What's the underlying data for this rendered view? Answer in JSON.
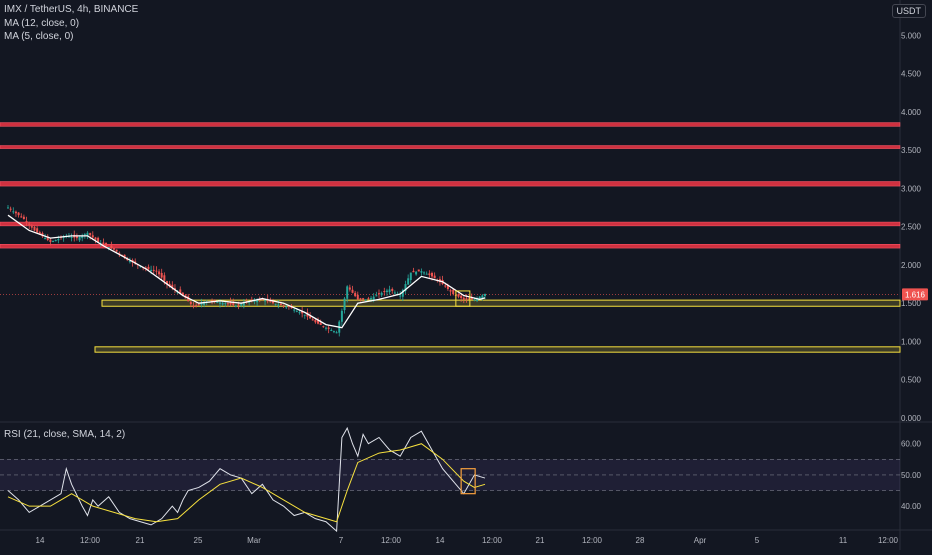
{
  "header": {
    "symbol_line": "IMX / TetherUS, 4h, BINANCE",
    "ma12_label": "MA (12, close, 0)",
    "ma5_label": "MA (5, close, 0)",
    "currency": "USDT"
  },
  "price_axis": {
    "ticks": [
      "5.000",
      "4.500",
      "4.000",
      "3.500",
      "3.000",
      "2.500",
      "2.000",
      "1.500",
      "1.000",
      "0.500",
      "0.000"
    ],
    "last_price": "1.616"
  },
  "rsi": {
    "label": "RSI (21, close, SMA, 14, 2)",
    "ticks": [
      "60.00",
      "50.00",
      "40.00"
    ]
  },
  "time_axis": {
    "ticks": [
      "14",
      "12:00",
      "21",
      "25",
      "Mar",
      "7",
      "12:00",
      "14",
      "12:00",
      "21",
      "12:00",
      "28",
      "Apr",
      "5",
      "11",
      "12:00"
    ]
  },
  "colors": {
    "background": "#131722",
    "resistance_zone": "#f23645",
    "support_zone": "#f7e13e",
    "up_candle": "#26a69a",
    "down_candle": "#ef5350",
    "ma12": "#ffffff",
    "rsi_line": "#e0e3eb",
    "rsi_ma": "#f7e13e",
    "rsi_band": "#7e57c2",
    "price_badge": "#ef5350"
  },
  "chart_data": {
    "type": "candlestick",
    "interval": "4h",
    "ylim": [
      0,
      5.2
    ],
    "resistance_zones": [
      [
        3.81,
        3.86
      ],
      [
        3.52,
        3.56
      ],
      [
        3.03,
        3.09
      ],
      [
        2.51,
        2.56
      ],
      [
        2.22,
        2.27
      ]
    ],
    "support_zones": [
      [
        1.46,
        1.54
      ],
      [
        0.86,
        0.93
      ]
    ],
    "price_path": [
      [
        0,
        2.75
      ],
      [
        3,
        2.6
      ],
      [
        5,
        2.45
      ],
      [
        8,
        2.3
      ],
      [
        11,
        2.38
      ],
      [
        13,
        2.35
      ],
      [
        15,
        2.42
      ],
      [
        17,
        2.3
      ],
      [
        20,
        2.2
      ],
      [
        23,
        2.05
      ],
      [
        26,
        1.95
      ],
      [
        28,
        1.92
      ],
      [
        30,
        1.75
      ],
      [
        33,
        1.6
      ],
      [
        35,
        1.45
      ],
      [
        37,
        1.52
      ],
      [
        39,
        1.52
      ],
      [
        41,
        1.5
      ],
      [
        43,
        1.47
      ],
      [
        46,
        1.53
      ],
      [
        48,
        1.55
      ],
      [
        50,
        1.5
      ],
      [
        53,
        1.45
      ],
      [
        56,
        1.35
      ],
      [
        58,
        1.25
      ],
      [
        60,
        1.18
      ],
      [
        62,
        1.12
      ],
      [
        63,
        1.4
      ],
      [
        64,
        1.72
      ],
      [
        66,
        1.55
      ],
      [
        68,
        1.55
      ],
      [
        70,
        1.62
      ],
      [
        72,
        1.68
      ],
      [
        74,
        1.6
      ],
      [
        76,
        1.9
      ],
      [
        78,
        1.92
      ],
      [
        80,
        1.85
      ],
      [
        82,
        1.75
      ],
      [
        84,
        1.62
      ],
      [
        86,
        1.55
      ],
      [
        88,
        1.55
      ],
      [
        90,
        1.62
      ]
    ],
    "ma12_path": [
      [
        0,
        2.65
      ],
      [
        4,
        2.45
      ],
      [
        8,
        2.35
      ],
      [
        12,
        2.38
      ],
      [
        15,
        2.38
      ],
      [
        18,
        2.25
      ],
      [
        22,
        2.1
      ],
      [
        26,
        1.95
      ],
      [
        30,
        1.75
      ],
      [
        33,
        1.6
      ],
      [
        36,
        1.5
      ],
      [
        40,
        1.53
      ],
      [
        44,
        1.5
      ],
      [
        48,
        1.56
      ],
      [
        52,
        1.5
      ],
      [
        56,
        1.38
      ],
      [
        60,
        1.22
      ],
      [
        63,
        1.18
      ],
      [
        66,
        1.5
      ],
      [
        70,
        1.55
      ],
      [
        74,
        1.62
      ],
      [
        78,
        1.85
      ],
      [
        82,
        1.78
      ],
      [
        86,
        1.6
      ],
      [
        89,
        1.55
      ],
      [
        90,
        1.57
      ]
    ],
    "rsi_values": [
      [
        0,
        45
      ],
      [
        2,
        42
      ],
      [
        4,
        38
      ],
      [
        6,
        40
      ],
      [
        8,
        42
      ],
      [
        10,
        44
      ],
      [
        11,
        52
      ],
      [
        12,
        47
      ],
      [
        14,
        40
      ],
      [
        15,
        37
      ],
      [
        16,
        42
      ],
      [
        17,
        40
      ],
      [
        19,
        43
      ],
      [
        21,
        38
      ],
      [
        23,
        36
      ],
      [
        25,
        35
      ],
      [
        27,
        34
      ],
      [
        29,
        36
      ],
      [
        31,
        40
      ],
      [
        32,
        38
      ],
      [
        33,
        42
      ],
      [
        34,
        45
      ],
      [
        36,
        46
      ],
      [
        38,
        48
      ],
      [
        40,
        52
      ],
      [
        42,
        50
      ],
      [
        44,
        49
      ],
      [
        46,
        44
      ],
      [
        48,
        47
      ],
      [
        50,
        42
      ],
      [
        52,
        40
      ],
      [
        54,
        37
      ],
      [
        56,
        38
      ],
      [
        58,
        36
      ],
      [
        60,
        35
      ],
      [
        62,
        32
      ],
      [
        63,
        62
      ],
      [
        64,
        65
      ],
      [
        65,
        60
      ],
      [
        66,
        56
      ],
      [
        67,
        63
      ],
      [
        68,
        60
      ],
      [
        70,
        62
      ],
      [
        72,
        58
      ],
      [
        74,
        56
      ],
      [
        76,
        62
      ],
      [
        78,
        64
      ],
      [
        80,
        58
      ],
      [
        82,
        52
      ],
      [
        84,
        48
      ],
      [
        86,
        44
      ],
      [
        88,
        50
      ],
      [
        90,
        49
      ]
    ],
    "rsi_ma_values": [
      [
        0,
        43
      ],
      [
        4,
        40
      ],
      [
        8,
        40
      ],
      [
        10,
        42
      ],
      [
        12,
        44
      ],
      [
        14,
        42
      ],
      [
        16,
        40
      ],
      [
        20,
        38
      ],
      [
        24,
        36
      ],
      [
        28,
        35
      ],
      [
        32,
        36
      ],
      [
        36,
        42
      ],
      [
        40,
        47
      ],
      [
        44,
        49
      ],
      [
        48,
        46
      ],
      [
        52,
        42
      ],
      [
        56,
        38
      ],
      [
        60,
        36
      ],
      [
        62,
        35
      ],
      [
        64,
        45
      ],
      [
        66,
        54
      ],
      [
        70,
        57
      ],
      [
        74,
        58
      ],
      [
        78,
        60
      ],
      [
        82,
        55
      ],
      [
        86,
        48
      ],
      [
        88,
        46
      ],
      [
        90,
        47
      ]
    ],
    "rsi_band": [
      45,
      55
    ],
    "rsi_ylim": [
      33,
      66
    ]
  }
}
